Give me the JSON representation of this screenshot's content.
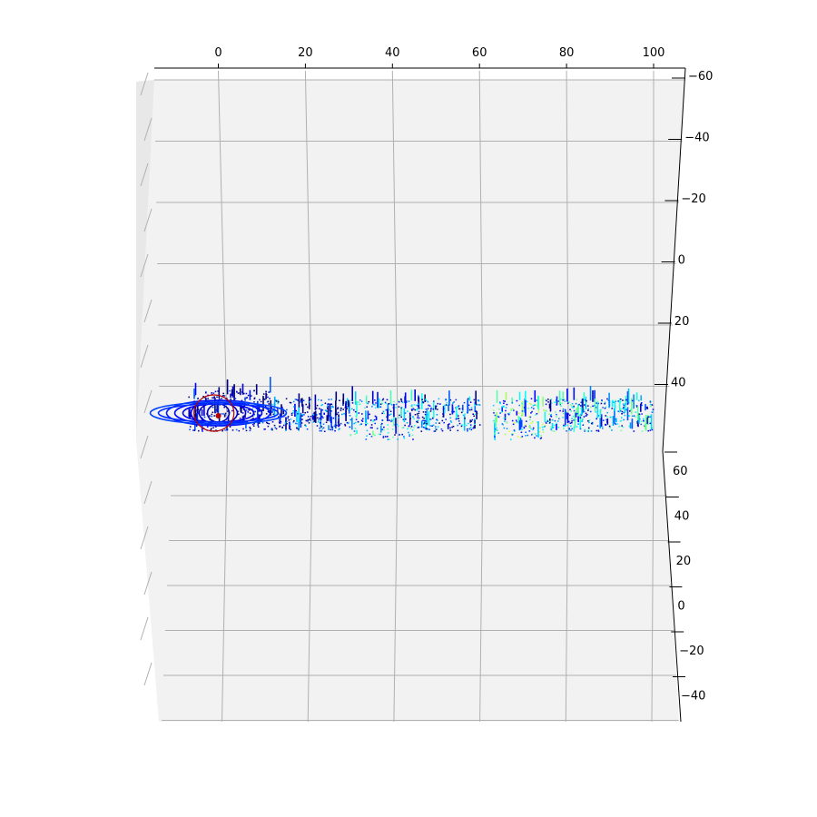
{
  "chart_data": {
    "type": "scatter",
    "projection": "3d",
    "title": "",
    "colormap": "jet",
    "grid": true,
    "pane_color": "#f2f2f2",
    "grid_color": "#b0b0b0",
    "x_axis": {
      "label": "",
      "range": [
        -15,
        107
      ],
      "ticks": [
        0,
        20,
        40,
        60,
        80,
        100
      ],
      "tick_labels": [
        "0",
        "20",
        "40",
        "60",
        "80",
        "100"
      ]
    },
    "y_axis": {
      "label": "",
      "range": [
        -60,
        50
      ],
      "ticks": [
        -60,
        -40,
        -20,
        0,
        20,
        40
      ],
      "tick_labels": [
        "−60",
        "−40",
        "−20",
        "0",
        "20",
        "40"
      ]
    },
    "z_axis": {
      "label": "",
      "range": [
        -48,
        68
      ],
      "ticks": [
        60,
        40,
        20,
        0,
        -20,
        -40
      ],
      "tick_labels": [
        "60",
        "40",
        "20",
        "0",
        "−20",
        "−40"
      ]
    },
    "point_cloud": {
      "description_note": "",
      "clusters": [
        {
          "x_range": [
            -7,
            12
          ],
          "z_range": [
            40,
            50
          ],
          "dominant_level": 0.05
        },
        {
          "x_range": [
            12,
            30
          ],
          "z_range": [
            40,
            48
          ],
          "dominant_level": 0.15
        },
        {
          "x_range": [
            30,
            45
          ],
          "z_range": [
            38,
            48
          ],
          "dominant_level": 0.3
        },
        {
          "x_range": [
            45,
            60
          ],
          "z_range": [
            40,
            48
          ],
          "dominant_level": 0.2
        },
        {
          "x_range": [
            63,
            75
          ],
          "z_range": [
            38,
            48
          ],
          "dominant_level": 0.4
        },
        {
          "x_range": [
            75,
            100
          ],
          "z_range": [
            40,
            48
          ],
          "dominant_level": 0.3
        }
      ]
    }
  }
}
